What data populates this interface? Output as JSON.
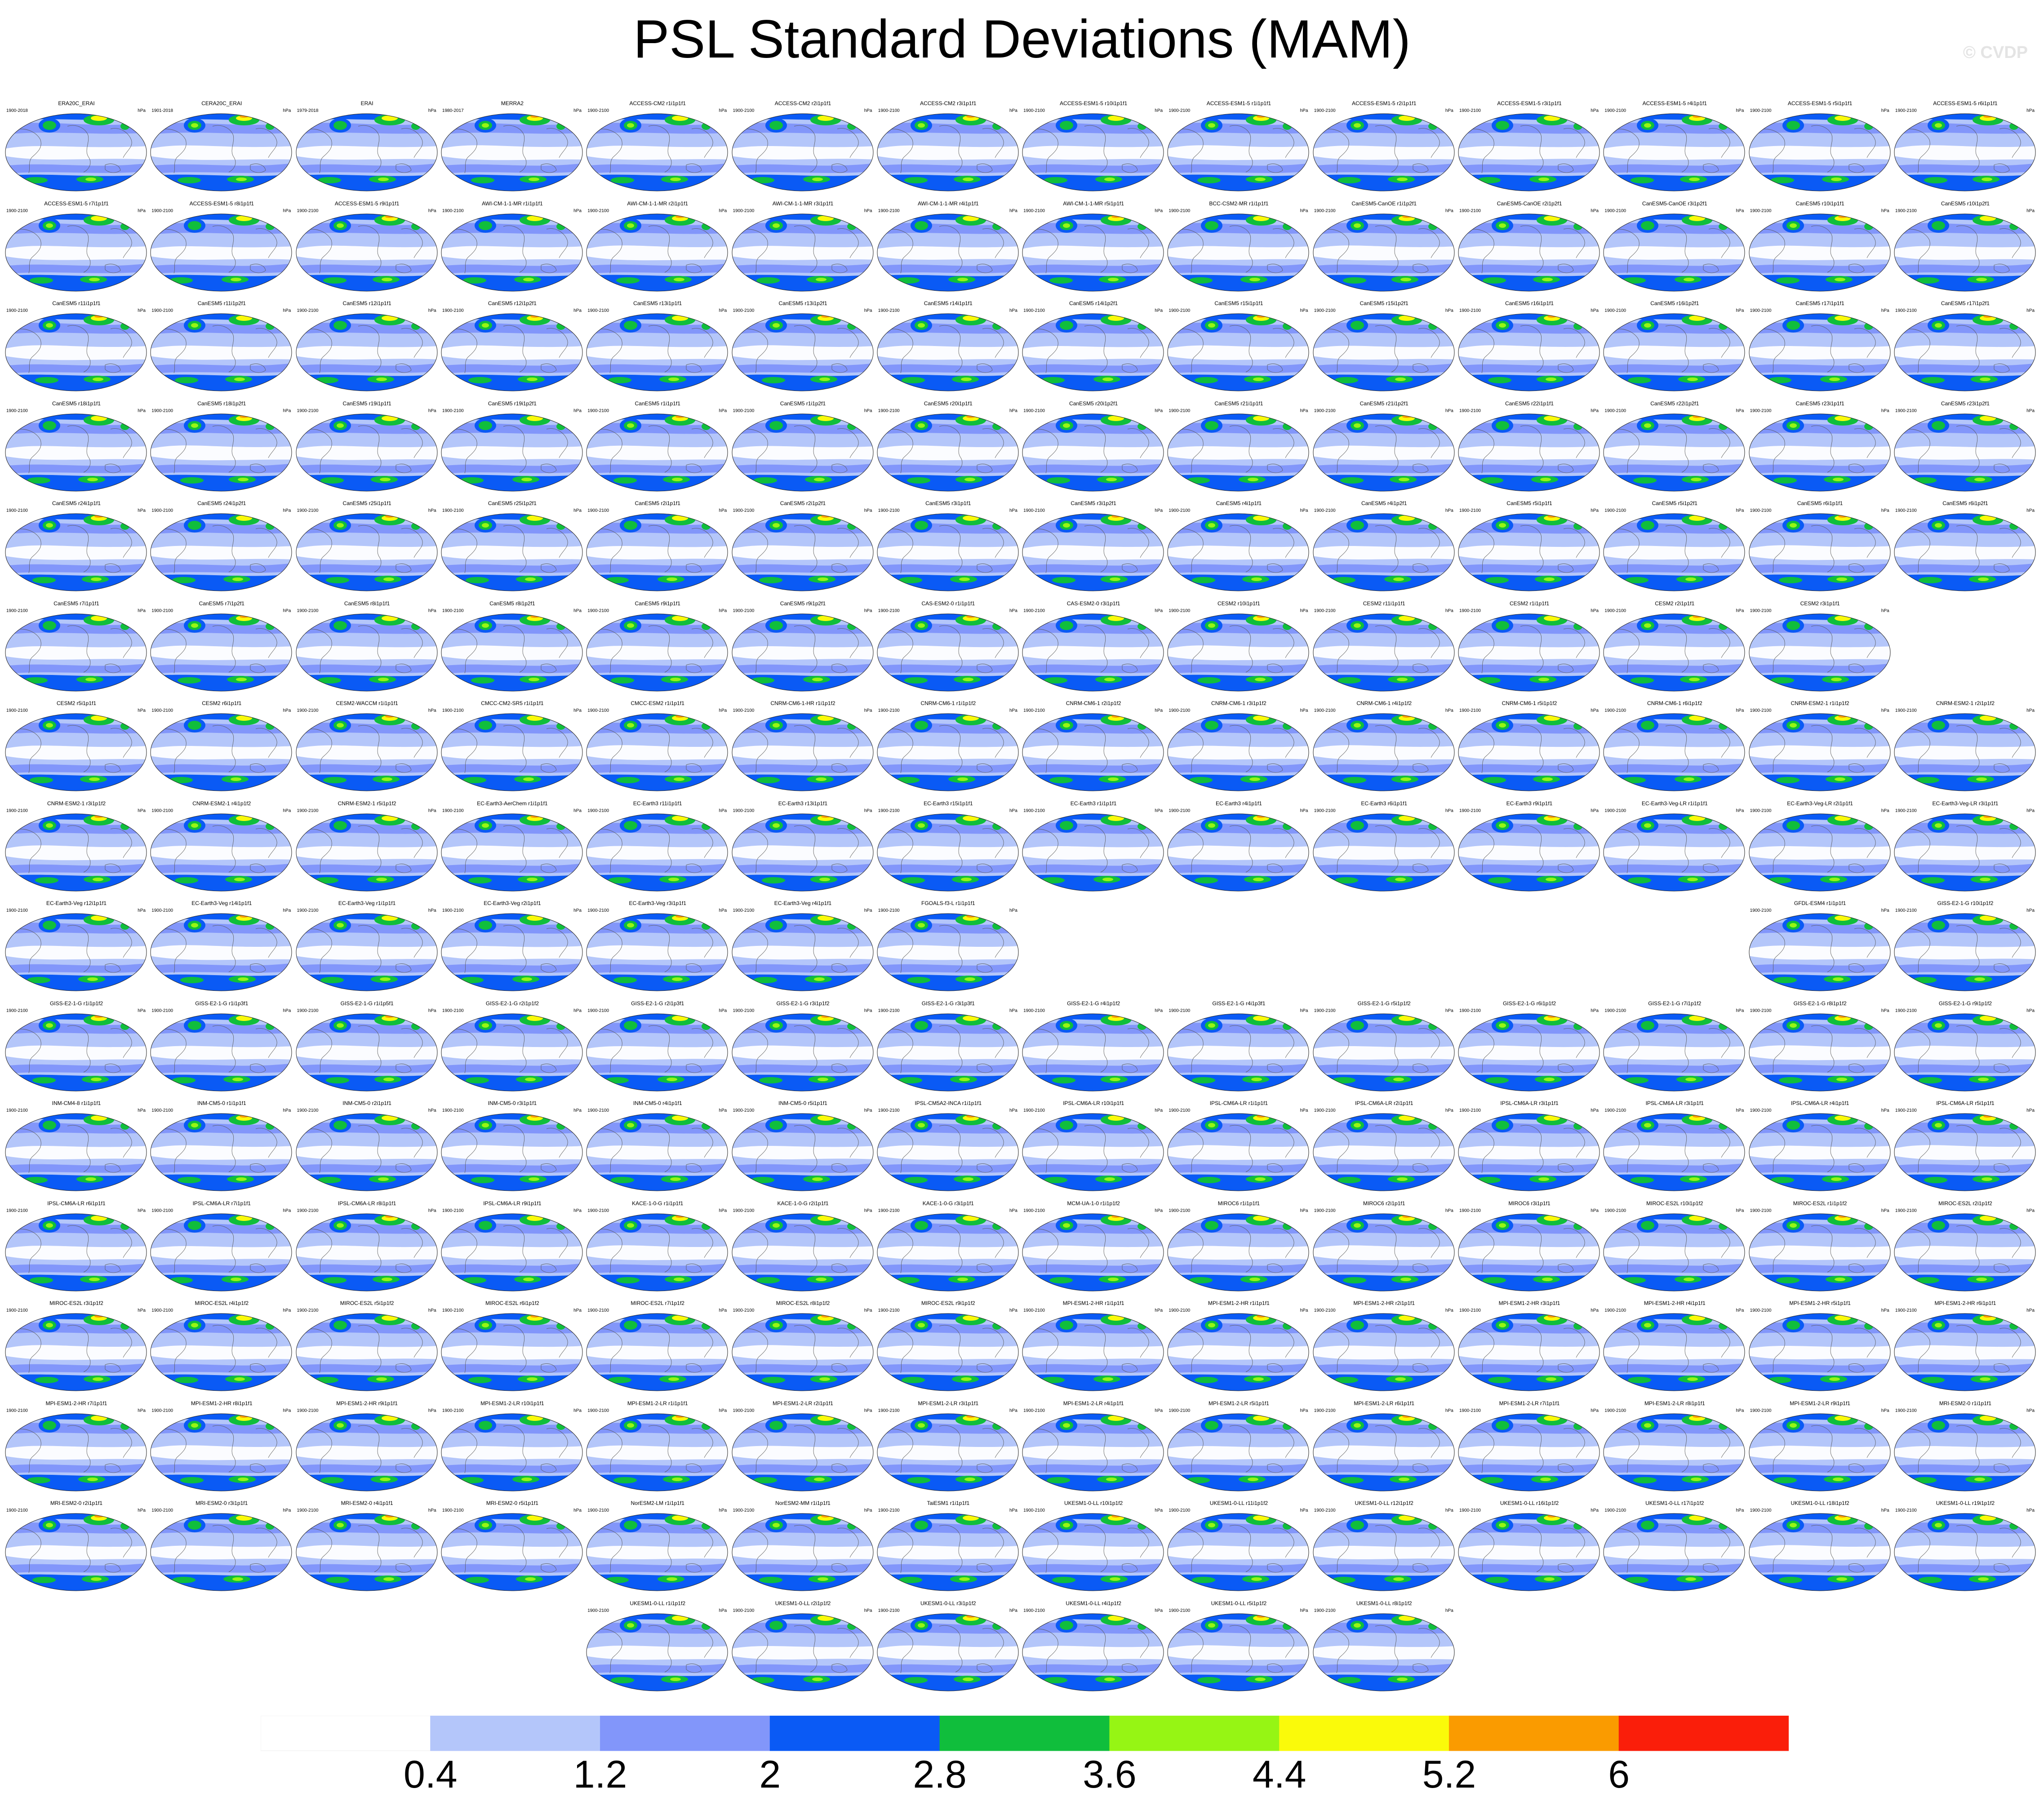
{
  "title": "PSL Standard Deviations (MAM)",
  "watermark": "© CVDP",
  "units": "hPa",
  "rows": [
    [
      {
        "label": "ERA20C_ERAI",
        "years": "1900-2018"
      },
      {
        "label": "CERA20C_ERAI",
        "years": "1901-2018"
      },
      {
        "label": "ERAI",
        "years": "1979-2018"
      },
      {
        "label": "MERRA2",
        "years": "1980-2017"
      },
      {
        "label": "ACCESS-CM2 r1i1p1f1",
        "years": "1900-2100"
      },
      {
        "label": "ACCESS-CM2 r2i1p1f1",
        "years": "1900-2100"
      },
      {
        "label": "ACCESS-CM2 r3i1p1f1",
        "years": "1900-2100"
      },
      {
        "label": "ACCESS-ESM1-5 r10i1p1f1",
        "years": "1900-2100"
      },
      {
        "label": "ACCESS-ESM1-5 r1i1p1f1",
        "years": "1900-2100"
      },
      {
        "label": "ACCESS-ESM1-5 r2i1p1f1",
        "years": "1900-2100"
      },
      {
        "label": "ACCESS-ESM1-5 r3i1p1f1",
        "years": "1900-2100"
      },
      {
        "label": "ACCESS-ESM1-5 r4i1p1f1",
        "years": "1900-2100"
      },
      {
        "label": "ACCESS-ESM1-5 r5i1p1f1",
        "years": "1900-2100"
      },
      {
        "label": "ACCESS-ESM1-5 r6i1p1f1",
        "years": "1900-2100"
      }
    ],
    [
      {
        "label": "ACCESS-ESM1-5 r7i1p1f1",
        "years": "1900-2100"
      },
      {
        "label": "ACCESS-ESM1-5 r8i1p1f1",
        "years": "1900-2100"
      },
      {
        "label": "ACCESS-ESM1-5 r9i1p1f1",
        "years": "1900-2100"
      },
      {
        "label": "AWI-CM-1-1-MR r1i1p1f1",
        "years": "1900-2100"
      },
      {
        "label": "AWI-CM-1-1-MR r2i1p1f1",
        "years": "1900-2100"
      },
      {
        "label": "AWI-CM-1-1-MR r3i1p1f1",
        "years": "1900-2100"
      },
      {
        "label": "AWI-CM-1-1-MR r4i1p1f1",
        "years": "1900-2100"
      },
      {
        "label": "AWI-CM-1-1-MR r5i1p1f1",
        "years": "1900-2100"
      },
      {
        "label": "BCC-CSM2-MR r1i1p1f1",
        "years": "1900-2100"
      },
      {
        "label": "CanESM5-CanOE r1i1p2f1",
        "years": "1900-2100"
      },
      {
        "label": "CanESM5-CanOE r2i1p2f1",
        "years": "1900-2100"
      },
      {
        "label": "CanESM5-CanOE r3i1p2f1",
        "years": "1900-2100"
      },
      {
        "label": "CanESM5 r10i1p1f1",
        "years": "1900-2100"
      },
      {
        "label": "CanESM5 r10i1p2f1",
        "years": "1900-2100"
      }
    ],
    [
      {
        "label": "CanESM5 r11i1p1f1",
        "years": "1900-2100"
      },
      {
        "label": "CanESM5 r11i1p2f1",
        "years": "1900-2100"
      },
      {
        "label": "CanESM5 r12i1p1f1",
        "years": "1900-2100"
      },
      {
        "label": "CanESM5 r12i1p2f1",
        "years": "1900-2100"
      },
      {
        "label": "CanESM5 r13i1p1f1",
        "years": "1900-2100"
      },
      {
        "label": "CanESM5 r13i1p2f1",
        "years": "1900-2100"
      },
      {
        "label": "CanESM5 r14i1p1f1",
        "years": "1900-2100"
      },
      {
        "label": "CanESM5 r14i1p2f1",
        "years": "1900-2100"
      },
      {
        "label": "CanESM5 r15i1p1f1",
        "years": "1900-2100"
      },
      {
        "label": "CanESM5 r15i1p2f1",
        "years": "1900-2100"
      },
      {
        "label": "CanESM5 r16i1p1f1",
        "years": "1900-2100"
      },
      {
        "label": "CanESM5 r16i1p2f1",
        "years": "1900-2100"
      },
      {
        "label": "CanESM5 r17i1p1f1",
        "years": "1900-2100"
      },
      {
        "label": "CanESM5 r17i1p2f1",
        "years": "1900-2100"
      }
    ],
    [
      {
        "label": "CanESM5 r18i1p1f1",
        "years": "1900-2100"
      },
      {
        "label": "CanESM5 r18i1p2f1",
        "years": "1900-2100"
      },
      {
        "label": "CanESM5 r19i1p1f1",
        "years": "1900-2100"
      },
      {
        "label": "CanESM5 r19i1p2f1",
        "years": "1900-2100"
      },
      {
        "label": "CanESM5 r1i1p1f1",
        "years": "1900-2100"
      },
      {
        "label": "CanESM5 r1i1p2f1",
        "years": "1900-2100"
      },
      {
        "label": "CanESM5 r20i1p1f1",
        "years": "1900-2100"
      },
      {
        "label": "CanESM5 r20i1p2f1",
        "years": "1900-2100"
      },
      {
        "label": "CanESM5 r21i1p1f1",
        "years": "1900-2100"
      },
      {
        "label": "CanESM5 r21i1p2f1",
        "years": "1900-2100"
      },
      {
        "label": "CanESM5 r22i1p1f1",
        "years": "1900-2100"
      },
      {
        "label": "CanESM5 r22i1p2f1",
        "years": "1900-2100"
      },
      {
        "label": "CanESM5 r23i1p1f1",
        "years": "1900-2100"
      },
      {
        "label": "CanESM5 r23i1p2f1",
        "years": "1900-2100"
      }
    ],
    [
      {
        "label": "CanESM5 r24i1p1f1",
        "years": "1900-2100"
      },
      {
        "label": "CanESM5 r24i1p2f1",
        "years": "1900-2100"
      },
      {
        "label": "CanESM5 r25i1p1f1",
        "years": "1900-2100"
      },
      {
        "label": "CanESM5 r25i1p2f1",
        "years": "1900-2100"
      },
      {
        "label": "CanESM5 r2i1p1f1",
        "years": "1900-2100"
      },
      {
        "label": "CanESM5 r2i1p2f1",
        "years": "1900-2100"
      },
      {
        "label": "CanESM5 r3i1p1f1",
        "years": "1900-2100"
      },
      {
        "label": "CanESM5 r3i1p2f1",
        "years": "1900-2100"
      },
      {
        "label": "CanESM5 r4i1p1f1",
        "years": "1900-2100"
      },
      {
        "label": "CanESM5 r4i1p2f1",
        "years": "1900-2100"
      },
      {
        "label": "CanESM5 r5i1p1f1",
        "years": "1900-2100"
      },
      {
        "label": "CanESM5 r5i1p2f1",
        "years": "1900-2100"
      },
      {
        "label": "CanESM5 r6i1p1f1",
        "years": "1900-2100"
      },
      {
        "label": "CanESM5 r6i1p2f1",
        "years": "1900-2100"
      }
    ],
    [
      {
        "label": "CanESM5 r7i1p1f1",
        "years": "1900-2100"
      },
      {
        "label": "CanESM5 r7i1p2f1",
        "years": "1900-2100"
      },
      {
        "label": "CanESM5 r8i1p1f1",
        "years": "1900-2100"
      },
      {
        "label": "CanESM5 r8i1p2f1",
        "years": "1900-2100"
      },
      {
        "label": "CanESM5 r9i1p1f1",
        "years": "1900-2100"
      },
      {
        "label": "CanESM5 r9i1p2f1",
        "years": "1900-2100"
      },
      {
        "label": "CAS-ESM2-0 r1i1p1f1",
        "years": "1900-2100"
      },
      {
        "label": "CAS-ESM2-0 r3i1p1f1",
        "years": "1900-2100"
      },
      {
        "label": "CESM2 r10i1p1f1",
        "years": "1900-2100"
      },
      {
        "label": "CESM2 r11i1p1f1",
        "years": "1900-2100"
      },
      {
        "label": "CESM2 r1i1p1f1",
        "years": "1900-2100"
      },
      {
        "label": "CESM2 r2i1p1f1",
        "years": "1900-2100"
      },
      {
        "label": "CESM2 r3i1p1f1",
        "years": "1900-2100"
      }
    ],
    [
      {
        "label": "CESM2 r5i1p1f1",
        "years": "1900-2100"
      },
      {
        "label": "CESM2 r6i1p1f1",
        "years": "1900-2100"
      },
      {
        "label": "CESM2-WACCM r1i1p1f1",
        "years": "1900-2100"
      },
      {
        "label": "CMCC-CM2-SR5 r1i1p1f1",
        "years": "1900-2100"
      },
      {
        "label": "CMCC-ESM2 r1i1p1f1",
        "years": "1900-2100"
      },
      {
        "label": "CNRM-CM6-1-HR r1i1p1f2",
        "years": "1900-2100"
      },
      {
        "label": "CNRM-CM6-1 r1i1p1f2",
        "years": "1900-2100"
      },
      {
        "label": "CNRM-CM6-1 r2i1p1f2",
        "years": "1900-2100"
      },
      {
        "label": "CNRM-CM6-1 r3i1p1f2",
        "years": "1900-2100"
      },
      {
        "label": "CNRM-CM6-1 r4i1p1f2",
        "years": "1900-2100"
      },
      {
        "label": "CNRM-CM6-1 r5i1p1f2",
        "years": "1900-2100"
      },
      {
        "label": "CNRM-CM6-1 r6i1p1f2",
        "years": "1900-2100"
      },
      {
        "label": "CNRM-ESM2-1 r1i1p1f2",
        "years": "1900-2100"
      },
      {
        "label": "CNRM-ESM2-1 r2i1p1f2",
        "years": "1900-2100"
      }
    ],
    [
      {
        "label": "CNRM-ESM2-1 r3i1p1f2",
        "years": "1900-2100"
      },
      {
        "label": "CNRM-ESM2-1 r4i1p1f2",
        "years": "1900-2100"
      },
      {
        "label": "CNRM-ESM2-1 r5i1p1f2",
        "years": "1900-2100"
      },
      {
        "label": "EC-Earth3-AerChem r1i1p1f1",
        "years": "1900-2100"
      },
      {
        "label": "EC-Earth3 r11i1p1f1",
        "years": "1900-2100"
      },
      {
        "label": "EC-Earth3 r13i1p1f1",
        "years": "1900-2100"
      },
      {
        "label": "EC-Earth3 r15i1p1f1",
        "years": "1900-2100"
      },
      {
        "label": "EC-Earth3 r1i1p1f1",
        "years": "1900-2100"
      },
      {
        "label": "EC-Earth3 r4i1p1f1",
        "years": "1900-2100"
      },
      {
        "label": "EC-Earth3 r6i1p1f1",
        "years": "1900-2100"
      },
      {
        "label": "EC-Earth3 r9i1p1f1",
        "years": "1900-2100"
      },
      {
        "label": "EC-Earth3-Veg-LR r1i1p1f1",
        "years": "1900-2100"
      },
      {
        "label": "EC-Earth3-Veg-LR r2i1p1f1",
        "years": "1900-2100"
      },
      {
        "label": "EC-Earth3-Veg-LR r3i1p1f1",
        "years": "1900-2100"
      }
    ],
    [
      {
        "label": "EC-Earth3-Veg r12i1p1f1",
        "years": "1900-2100"
      },
      {
        "label": "EC-Earth3-Veg r14i1p1f1",
        "years": "1900-2100"
      },
      {
        "label": "EC-Earth3-Veg r1i1p1f1",
        "years": "1900-2100"
      },
      {
        "label": "EC-Earth3-Veg r2i1p1f1",
        "years": "1900-2100"
      },
      {
        "label": "EC-Earth3-Veg r3i1p1f1",
        "years": "1900-2100"
      },
      {
        "label": "EC-Earth3-Veg r4i1p1f1",
        "years": "1900-2100"
      },
      {
        "label": "FGOALS-f3-L r1i1p1f1",
        "years": "1900-2100"
      },
      null,
      null,
      null,
      null,
      null,
      {
        "label": "GFDL-ESM4 r1i1p1f1",
        "years": "1900-2100"
      },
      {
        "label": "GISS-E2-1-G r10i1p1f2",
        "years": "1900-2100"
      }
    ],
    [
      {
        "label": "GISS-E2-1-G r1i1p1f2",
        "years": "1900-2100"
      },
      {
        "label": "GISS-E2-1-G r1i1p3f1",
        "years": "1900-2100"
      },
      {
        "label": "GISS-E2-1-G r1i1p5f1",
        "years": "1900-2100"
      },
      {
        "label": "GISS-E2-1-G r2i1p1f2",
        "years": "1900-2100"
      },
      {
        "label": "GISS-E2-1-G r2i1p3f1",
        "years": "1900-2100"
      },
      {
        "label": "GISS-E2-1-G r3i1p1f2",
        "years": "1900-2100"
      },
      {
        "label": "GISS-E2-1-G r3i1p3f1",
        "years": "1900-2100"
      },
      {
        "label": "GISS-E2-1-G r4i1p1f2",
        "years": "1900-2100"
      },
      {
        "label": "GISS-E2-1-G r4i1p3f1",
        "years": "1900-2100"
      },
      {
        "label": "GISS-E2-1-G r5i1p1f2",
        "years": "1900-2100"
      },
      {
        "label": "GISS-E2-1-G r6i1p1f2",
        "years": "1900-2100"
      },
      {
        "label": "GISS-E2-1-G r7i1p1f2",
        "years": "1900-2100"
      },
      {
        "label": "GISS-E2-1-G r8i1p1f2",
        "years": "1900-2100"
      },
      {
        "label": "GISS-E2-1-G r9i1p1f2",
        "years": "1900-2100"
      }
    ],
    [
      {
        "label": "INM-CM4-8 r1i1p1f1",
        "years": "1900-2100"
      },
      {
        "label": "INM-CM5-0 r1i1p1f1",
        "years": "1900-2100"
      },
      {
        "label": "INM-CM5-0 r2i1p1f1",
        "years": "1900-2100"
      },
      {
        "label": "INM-CM5-0 r3i1p1f1",
        "years": "1900-2100"
      },
      {
        "label": "INM-CM5-0 r4i1p1f1",
        "years": "1900-2100"
      },
      {
        "label": "INM-CM5-0 r5i1p1f1",
        "years": "1900-2100"
      },
      {
        "label": "IPSL-CM5A2-INCA r1i1p1f1",
        "years": "1900-2100"
      },
      {
        "label": "IPSL-CM6A-LR r10i1p1f1",
        "years": "1900-2100"
      },
      {
        "label": "IPSL-CM6A-LR r1i1p1f1",
        "years": "1900-2100"
      },
      {
        "label": "IPSL-CM6A-LR r2i1p1f1",
        "years": "1900-2100"
      },
      {
        "label": "IPSL-CM6A-LR r3i1p1f1",
        "years": "1900-2100"
      },
      {
        "label": "IPSL-CM6A-LR r3i1p1f1",
        "years": "1900-2100"
      },
      {
        "label": "IPSL-CM6A-LR r4i1p1f1",
        "years": "1900-2100"
      },
      {
        "label": "IPSL-CM6A-LR r5i1p1f1",
        "years": "1900-2100"
      }
    ],
    [
      {
        "label": "IPSL-CM6A-LR r6i1p1f1",
        "years": "1900-2100"
      },
      {
        "label": "IPSL-CM6A-LR r7i1p1f1",
        "years": "1900-2100"
      },
      {
        "label": "IPSL-CM6A-LR r8i1p1f1",
        "years": "1900-2100"
      },
      {
        "label": "IPSL-CM6A-LR r9i1p1f1",
        "years": "1900-2100"
      },
      {
        "label": "KACE-1-0-G r1i1p1f1",
        "years": "1900-2100"
      },
      {
        "label": "KACE-1-0-G r2i1p1f1",
        "years": "1900-2100"
      },
      {
        "label": "KACE-1-0-G r3i1p1f1",
        "years": "1900-2100"
      },
      {
        "label": "MCM-UA-1-0 r1i1p1f2",
        "years": "1900-2100"
      },
      {
        "label": "MIROC6 r1i1p1f1",
        "years": "1900-2100"
      },
      {
        "label": "MIROC6 r2i1p1f1",
        "years": "1900-2100"
      },
      {
        "label": "MIROC6 r3i1p1f1",
        "years": "1900-2100"
      },
      {
        "label": "MIROC-ES2L r10i1p1f2",
        "years": "1900-2100"
      },
      {
        "label": "MIROC-ES2L r1i1p1f2",
        "years": "1900-2100"
      },
      {
        "label": "MIROC-ES2L r2i1p1f2",
        "years": "1900-2100"
      }
    ],
    [
      {
        "label": "MIROC-ES2L r3i1p1f2",
        "years": "1900-2100"
      },
      {
        "label": "MIROC-ES2L r4i1p1f2",
        "years": "1900-2100"
      },
      {
        "label": "MIROC-ES2L r5i1p1f2",
        "years": "1900-2100"
      },
      {
        "label": "MIROC-ES2L r6i1p1f2",
        "years": "1900-2100"
      },
      {
        "label": "MIROC-ES2L r7i1p1f2",
        "years": "1900-2100"
      },
      {
        "label": "MIROC-ES2L r8i1p1f2",
        "years": "1900-2100"
      },
      {
        "label": "MIROC-ES2L r9i1p1f2",
        "years": "1900-2100"
      },
      {
        "label": "MPI-ESM1-2-HR r1i1p1f1",
        "years": "1900-2100"
      },
      {
        "label": "MPI-ESM1-2-HR r1i1p1f1",
        "years": "1900-2100"
      },
      {
        "label": "MPI-ESM1-2-HR r2i1p1f1",
        "years": "1900-2100"
      },
      {
        "label": "MPI-ESM1-2-HR r3i1p1f1",
        "years": "1900-2100"
      },
      {
        "label": "MPI-ESM1-2-HR r4i1p1f1",
        "years": "1900-2100"
      },
      {
        "label": "MPI-ESM1-2-HR r5i1p1f1",
        "years": "1900-2100"
      },
      {
        "label": "MPI-ESM1-2-HR r6i1p1f1",
        "years": "1900-2100"
      }
    ],
    [
      {
        "label": "MPI-ESM1-2-HR r7i1p1f1",
        "years": "1900-2100"
      },
      {
        "label": "MPI-ESM1-2-HR r8i1p1f1",
        "years": "1900-2100"
      },
      {
        "label": "MPI-ESM1-2-HR r9i1p1f1",
        "years": "1900-2100"
      },
      {
        "label": "MPI-ESM1-2-LR r10i1p1f1",
        "years": "1900-2100"
      },
      {
        "label": "MPI-ESM1-2-LR r1i1p1f1",
        "years": "1900-2100"
      },
      {
        "label": "MPI-ESM1-2-LR r2i1p1f1",
        "years": "1900-2100"
      },
      {
        "label": "MPI-ESM1-2-LR r3i1p1f1",
        "years": "1900-2100"
      },
      {
        "label": "MPI-ESM1-2-LR r4i1p1f1",
        "years": "1900-2100"
      },
      {
        "label": "MPI-ESM1-2-LR r5i1p1f1",
        "years": "1900-2100"
      },
      {
        "label": "MPI-ESM1-2-LR r6i1p1f1",
        "years": "1900-2100"
      },
      {
        "label": "MPI-ESM1-2-LR r7i1p1f1",
        "years": "1900-2100"
      },
      {
        "label": "MPI-ESM1-2-LR r8i1p1f1",
        "years": "1900-2100"
      },
      {
        "label": "MPI-ESM1-2-LR r9i1p1f1",
        "years": "1900-2100"
      },
      {
        "label": "MRI-ESM2-0 r1i1p1f1",
        "years": "1900-2100"
      }
    ],
    [
      {
        "label": "MRI-ESM2-0 r2i1p1f1",
        "years": "1900-2100"
      },
      {
        "label": "MRI-ESM2-0 r3i1p1f1",
        "years": "1900-2100"
      },
      {
        "label": "MRI-ESM2-0 r4i1p1f1",
        "years": "1900-2100"
      },
      {
        "label": "MRI-ESM2-0 r5i1p1f1",
        "years": "1900-2100"
      },
      {
        "label": "NorESM2-LM r1i1p1f1",
        "years": "1900-2100"
      },
      {
        "label": "NorESM2-MM r1i1p1f1",
        "years": "1900-2100"
      },
      {
        "label": "TaiESM1 r1i1p1f1",
        "years": "1900-2100"
      },
      {
        "label": "UKESM1-0-LL r10i1p1f2",
        "years": "1900-2100"
      },
      {
        "label": "UKESM1-0-LL r11i1p1f2",
        "years": "1900-2100"
      },
      {
        "label": "UKESM1-0-LL r12i1p1f2",
        "years": "1900-2100"
      },
      {
        "label": "UKESM1-0-LL r16i1p1f2",
        "years": "1900-2100"
      },
      {
        "label": "UKESM1-0-LL r17i1p1f2",
        "years": "1900-2100"
      },
      {
        "label": "UKESM1-0-LL r18i1p1f2",
        "years": "1900-2100"
      },
      {
        "label": "UKESM1-0-LL r19i1p1f2",
        "years": "1900-2100"
      }
    ],
    [
      null,
      null,
      null,
      null,
      {
        "label": "UKESM1-0-LL r1i1p1f2",
        "years": "1900-2100"
      },
      {
        "label": "UKESM1-0-LL r2i1p1f2",
        "years": "1900-2100"
      },
      {
        "label": "UKESM1-0-LL r3i1p1f2",
        "years": "1900-2100"
      },
      {
        "label": "UKESM1-0-LL r4i1p1f2",
        "years": "1900-2100"
      },
      {
        "label": "UKESM1-0-LL r5i1p1f2",
        "years": "1900-2100"
      },
      {
        "label": "UKESM1-0-LL r8i1p1f2",
        "years": "1900-2100"
      }
    ]
  ],
  "chart_data": {
    "type": "heatmap",
    "title": "PSL Standard Deviations (MAM)",
    "units": "hPa",
    "colorbar": {
      "levels": [
        0.4,
        1.2,
        2,
        2.8,
        3.6,
        4.4,
        5.2,
        6
      ],
      "tick_labels": [
        "0.4",
        "1.2",
        "2",
        "2.8",
        "3.6",
        "4.4",
        "5.2",
        "6"
      ],
      "colors": [
        "#ffffff",
        "#b4c6fa",
        "#8296fa",
        "#0a5af5",
        "#10be3c",
        "#96f514",
        "#fafa0a",
        "#fa9b00",
        "#fa1e0a"
      ]
    },
    "ocean_color": "#b4c6fa",
    "coastline_color": "#555555"
  }
}
